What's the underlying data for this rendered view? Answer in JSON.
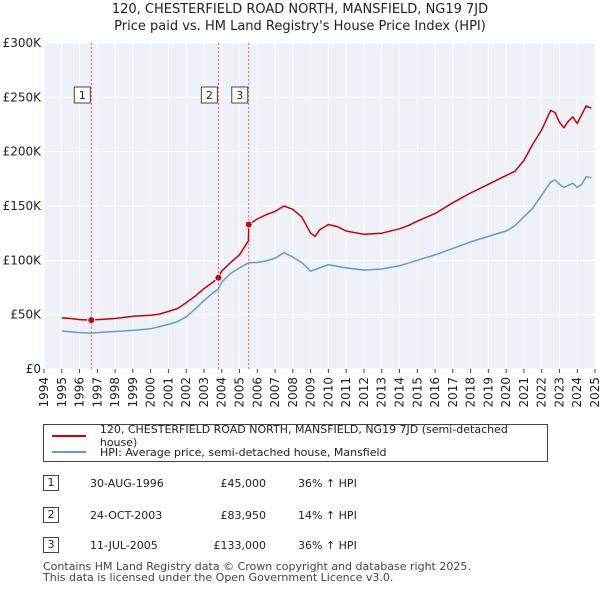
{
  "header": {
    "title": "120, CHESTERFIELD ROAD NORTH, MANSFIELD, NG19 7JD",
    "subtitle": "Price paid vs. HM Land Registry's House Price Index (HPI)"
  },
  "chart_data": {
    "type": "line",
    "title": "120, CHESTERFIELD ROAD NORTH, MANSFIELD, NG19 7JD",
    "subtitle": "Price paid vs. HM Land Registry's House Price Index (HPI)",
    "xlim": [
      1994,
      2025
    ],
    "ylim": [
      0,
      300000
    ],
    "xticks": [
      "1994",
      "1995",
      "1996",
      "1997",
      "1998",
      "1999",
      "2000",
      "2001",
      "2002",
      "2003",
      "2004",
      "2005",
      "2006",
      "2007",
      "2008",
      "2009",
      "2010",
      "2011",
      "2012",
      "2013",
      "2014",
      "2015",
      "2016",
      "2017",
      "2018",
      "2019",
      "2020",
      "2021",
      "2022",
      "2023",
      "2024",
      "2025"
    ],
    "yticks": [
      {
        "value": 0,
        "label": "£0"
      },
      {
        "value": 50000,
        "label": "£50K"
      },
      {
        "value": 100000,
        "label": "£100K"
      },
      {
        "value": 150000,
        "label": "£150K"
      },
      {
        "value": 200000,
        "label": "£200K"
      },
      {
        "value": 250000,
        "label": "£250K"
      },
      {
        "value": 300000,
        "label": "£300K"
      }
    ],
    "grid": true,
    "series": [
      {
        "name": "120, CHESTERFIELD ROAD NORTH, MANSFIELD, NG19 7JD (semi-detached house)",
        "color": "#cc0000",
        "points": [
          [
            1995.0,
            47000
          ],
          [
            1995.5,
            46500
          ],
          [
            1996.0,
            45500
          ],
          [
            1996.66,
            45000
          ],
          [
            1997.0,
            45500
          ],
          [
            1998.0,
            46500
          ],
          [
            1999.0,
            48500
          ],
          [
            2000.0,
            49500
          ],
          [
            2000.5,
            50500
          ],
          [
            2001.0,
            53000
          ],
          [
            2001.5,
            55500
          ],
          [
            2002.0,
            61000
          ],
          [
            2002.5,
            67000
          ],
          [
            2003.0,
            74000
          ],
          [
            2003.5,
            80000
          ],
          [
            2003.81,
            83950
          ],
          [
            2004.0,
            90000
          ],
          [
            2004.5,
            98000
          ],
          [
            2005.0,
            105000
          ],
          [
            2005.5,
            118000
          ],
          [
            2005.52,
            133000
          ],
          [
            2006.0,
            138000
          ],
          [
            2006.5,
            142000
          ],
          [
            2007.0,
            145000
          ],
          [
            2007.5,
            150000
          ],
          [
            2008.0,
            147000
          ],
          [
            2008.5,
            140000
          ],
          [
            2009.0,
            125000
          ],
          [
            2009.25,
            122000
          ],
          [
            2009.5,
            128000
          ],
          [
            2010.0,
            133000
          ],
          [
            2010.5,
            131000
          ],
          [
            2011.0,
            127000
          ],
          [
            2012.0,
            124000
          ],
          [
            2013.0,
            125000
          ],
          [
            2014.0,
            129000
          ],
          [
            2014.5,
            132000
          ],
          [
            2015.0,
            136000
          ],
          [
            2016.0,
            143000
          ],
          [
            2017.0,
            153000
          ],
          [
            2018.0,
            162000
          ],
          [
            2019.0,
            170000
          ],
          [
            2019.5,
            174000
          ],
          [
            2020.0,
            178000
          ],
          [
            2020.5,
            182000
          ],
          [
            2021.0,
            192000
          ],
          [
            2021.5,
            207000
          ],
          [
            2022.0,
            220000
          ],
          [
            2022.5,
            238000
          ],
          [
            2022.75,
            236000
          ],
          [
            2023.0,
            227000
          ],
          [
            2023.25,
            222000
          ],
          [
            2023.5,
            228000
          ],
          [
            2023.75,
            232000
          ],
          [
            2024.0,
            226000
          ],
          [
            2024.25,
            234000
          ],
          [
            2024.5,
            242000
          ],
          [
            2024.8,
            240000
          ]
        ]
      },
      {
        "name": "HPI: Average price, semi-detached house, Mansfield",
        "color": "#6699cc",
        "points": [
          [
            1995.0,
            35000
          ],
          [
            1996.0,
            33500
          ],
          [
            1996.66,
            33000
          ],
          [
            1997.0,
            33500
          ],
          [
            1998.0,
            34500
          ],
          [
            1999.0,
            35500
          ],
          [
            2000.0,
            37000
          ],
          [
            2001.0,
            41000
          ],
          [
            2001.5,
            43500
          ],
          [
            2002.0,
            48000
          ],
          [
            2002.5,
            55000
          ],
          [
            2003.0,
            63000
          ],
          [
            2003.5,
            70000
          ],
          [
            2003.81,
            73500
          ],
          [
            2004.0,
            80000
          ],
          [
            2004.5,
            88000
          ],
          [
            2005.0,
            93000
          ],
          [
            2005.52,
            97800
          ],
          [
            2006.0,
            98000
          ],
          [
            2006.5,
            99500
          ],
          [
            2007.0,
            102000
          ],
          [
            2007.5,
            107000
          ],
          [
            2008.0,
            103000
          ],
          [
            2008.5,
            98000
          ],
          [
            2009.0,
            90000
          ],
          [
            2009.5,
            93000
          ],
          [
            2010.0,
            96000
          ],
          [
            2011.0,
            93000
          ],
          [
            2012.0,
            91000
          ],
          [
            2013.0,
            92000
          ],
          [
            2014.0,
            95000
          ],
          [
            2015.0,
            100000
          ],
          [
            2016.0,
            105000
          ],
          [
            2017.0,
            111000
          ],
          [
            2018.0,
            117000
          ],
          [
            2019.0,
            122000
          ],
          [
            2020.0,
            127000
          ],
          [
            2020.5,
            132000
          ],
          [
            2021.0,
            140000
          ],
          [
            2021.5,
            148000
          ],
          [
            2022.0,
            160000
          ],
          [
            2022.5,
            172000
          ],
          [
            2022.75,
            174000
          ],
          [
            2023.0,
            170000
          ],
          [
            2023.25,
            167000
          ],
          [
            2023.5,
            169000
          ],
          [
            2023.75,
            171000
          ],
          [
            2024.0,
            167000
          ],
          [
            2024.25,
            170000
          ],
          [
            2024.5,
            177000
          ],
          [
            2024.8,
            176000
          ]
        ]
      }
    ],
    "transactions": [
      {
        "id": "1",
        "x": 1996.66,
        "price": 45000
      },
      {
        "id": "2",
        "x": 2003.81,
        "price": 83950
      },
      {
        "id": "3",
        "x": 2005.52,
        "price": 133000
      }
    ]
  },
  "legend": {
    "items": [
      {
        "label": "120, CHESTERFIELD ROAD NORTH, MANSFIELD, NG19 7JD (semi-detached house)",
        "color": "#cc0000"
      },
      {
        "label": "HPI: Average price, semi-detached house, Mansfield",
        "color": "#6699cc"
      }
    ]
  },
  "transactions_table": [
    {
      "num": "1",
      "date": "30-AUG-1996",
      "price": "£45,000",
      "hpi": "36% ↑ HPI"
    },
    {
      "num": "2",
      "date": "24-OCT-2003",
      "price": "£83,950",
      "hpi": "14% ↑ HPI"
    },
    {
      "num": "3",
      "date": "11-JUL-2005",
      "price": "£133,000",
      "hpi": "36% ↑ HPI"
    }
  ],
  "footer": {
    "line1": "Contains HM Land Registry data © Crown copyright and database right 2025.",
    "line2": "This data is licensed under the Open Government Licence v3.0."
  }
}
